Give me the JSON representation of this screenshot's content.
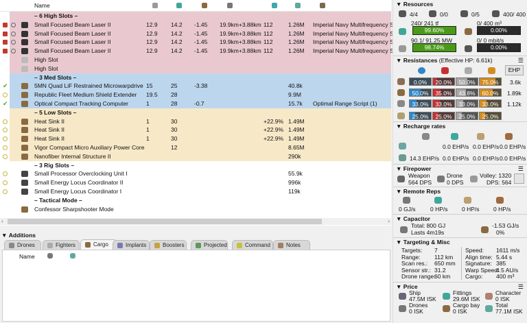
{
  "fitting": {
    "name_header": "Name",
    "column_icons": [
      "cpu-icon",
      "powergrid-icon",
      "capacitor-icon",
      "range-icon",
      "tracking-icon",
      "price-icon",
      "charge-icon"
    ],
    "rows": [
      {
        "type": "high",
        "header": true,
        "name": "– 6 High Slots –"
      },
      {
        "type": "high",
        "state": "overheated",
        "name": "Small Focused Beam Laser II",
        "values": [
          "12.9",
          "14.2",
          "-1.45",
          "19.9km+3.88km",
          "112",
          "1.26M",
          "Imperial Navy Multifrequency S"
        ]
      },
      {
        "type": "high",
        "state": "overheated",
        "name": "Small Focused Beam Laser II",
        "values": [
          "12.9",
          "14.2",
          "-1.45",
          "19.9km+3.88km",
          "112",
          "1.26M",
          "Imperial Navy Multifrequency S"
        ]
      },
      {
        "type": "high",
        "state": "overheated",
        "name": "Small Focused Beam Laser II",
        "values": [
          "12.9",
          "14.2",
          "-1.45",
          "19.9km+3.88km",
          "112",
          "1.26M",
          "Imperial Navy Multifrequency S"
        ]
      },
      {
        "type": "high",
        "state": "overheated",
        "name": "Small Focused Beam Laser II",
        "values": [
          "12.9",
          "14.2",
          "-1.45",
          "19.9km+3.88km",
          "112",
          "1.26M",
          "Imperial Navy Multifrequency S"
        ]
      },
      {
        "type": "high",
        "state": "empty",
        "name": "High Slot",
        "values": []
      },
      {
        "type": "high",
        "state": "empty",
        "name": "High Slot",
        "values": []
      },
      {
        "type": "med",
        "header": true,
        "name": "– 3 Med Slots –"
      },
      {
        "type": "med",
        "state": "active",
        "name": "5MN Quad LiF Restrained Microwarpdrive",
        "values": [
          "15",
          "25",
          "-3.38",
          "",
          "",
          "40.8k",
          ""
        ]
      },
      {
        "type": "med",
        "state": "online",
        "name": "Republic Fleet Medium Shield Extender",
        "values": [
          "19.5",
          "28",
          "",
          "",
          "",
          "9.9M",
          ""
        ]
      },
      {
        "type": "med",
        "state": "active",
        "name": "Optical Compact Tracking Computer",
        "values": [
          "1",
          "28",
          "-0.7",
          "",
          "",
          "15.7k",
          "Optimal Range Script (1)"
        ]
      },
      {
        "type": "low",
        "header": true,
        "name": "– 5 Low Slots –"
      },
      {
        "type": "low",
        "state": "online",
        "name": "Heat Sink II",
        "values": [
          "1",
          "30",
          "",
          "",
          "+22.9%",
          "1.49M",
          ""
        ]
      },
      {
        "type": "low",
        "state": "online",
        "name": "Heat Sink II",
        "values": [
          "1",
          "30",
          "",
          "",
          "+22.9%",
          "1.49M",
          ""
        ]
      },
      {
        "type": "low",
        "state": "online",
        "name": "Heat Sink II",
        "values": [
          "1",
          "30",
          "",
          "",
          "+22.9%",
          "1.49M",
          ""
        ]
      },
      {
        "type": "low",
        "state": "online",
        "name": "Vigor Compact Micro Auxiliary Power Core",
        "values": [
          "",
          "12",
          "",
          "",
          "",
          "8.65M",
          ""
        ]
      },
      {
        "type": "low",
        "state": "online",
        "name": "Nanofiber Internal Structure II",
        "values": [
          "",
          "",
          "",
          "",
          "",
          "290k",
          ""
        ]
      },
      {
        "type": "rig",
        "header": true,
        "name": "– 3 Rig Slots –"
      },
      {
        "type": "rig",
        "state": "online",
        "name": "Small Processor Overclocking Unit I",
        "values": [
          "",
          "",
          "",
          "",
          "",
          "55.9k",
          ""
        ]
      },
      {
        "type": "rig",
        "state": "online",
        "name": "Small Energy Locus Coordinator II",
        "values": [
          "",
          "",
          "",
          "",
          "",
          "996k",
          ""
        ]
      },
      {
        "type": "rig",
        "state": "online",
        "name": "Small Energy Locus Coordinator I",
        "values": [
          "",
          "",
          "",
          "",
          "",
          "119k",
          ""
        ]
      },
      {
        "type": "mode",
        "header": true,
        "name": "– Tactical Mode –"
      },
      {
        "type": "mode",
        "state": "none",
        "name": "Confessor Sharpshooter Mode",
        "values": []
      }
    ]
  },
  "additions": {
    "title": "Additions",
    "tabs": [
      "Drones",
      "Fighters",
      "Cargo",
      "Implants",
      "Boosters",
      "Projected",
      "Command",
      "Notes"
    ],
    "selected_tab": "Cargo",
    "columns": {
      "name": "Name"
    }
  },
  "resources": {
    "title": "Resources",
    "counts": [
      {
        "icon": "turret-hardpoint-icon",
        "value": "4/4"
      },
      {
        "icon": "launcher-hardpoint-icon",
        "value": "0/0"
      },
      {
        "icon": "drone-bay-icon",
        "value": "0/5"
      },
      {
        "icon": "calibration-icon",
        "value": "400/ 400"
      }
    ],
    "cpu": {
      "label": "240/ 241 tf",
      "percent": "99.60%",
      "fill": 99.6
    },
    "power": {
      "label": "90.1/ 91.25 MW",
      "percent": "98.74%",
      "fill": 98.74
    },
    "dronebay": {
      "label": "0/ 400 m³",
      "percent": "0.00%",
      "fill": 0
    },
    "bandwidth": {
      "label": "0/ 0 mbit/s",
      "percent": "0.00%",
      "fill": 0
    }
  },
  "resistances": {
    "title": "Resistances",
    "ehp_note": "(Effective HP: 6.61k)",
    "ehp_button": "EHP",
    "colors": {
      "em": "#2f86c8",
      "thermal": "#c83030",
      "kinetic": "#a8a8a8",
      "explosive": "#d48c20"
    },
    "rows": [
      {
        "layer": "shield",
        "values": [
          "0.0%",
          "20.0%",
          "50.0%",
          "75.0%"
        ],
        "fills": [
          0,
          20,
          50,
          75
        ],
        "ehp": "3.6k"
      },
      {
        "layer": "armor",
        "values": [
          "50.0%",
          "35.0%",
          "43.8%",
          "60.0%"
        ],
        "fills": [
          50,
          35,
          43.8,
          60
        ],
        "ehp": "1.89k"
      },
      {
        "layer": "hull",
        "values": [
          "33.0%",
          "33.0%",
          "33.0%",
          "33.0%"
        ],
        "fills": [
          33,
          33,
          33,
          33
        ],
        "ehp": "1.12k"
      },
      {
        "layer": "damage-pattern",
        "values": [
          "25.0%",
          "25.0%",
          "25.0%",
          "25.0%"
        ],
        "fills": [
          25,
          25,
          25,
          25
        ],
        "ehp": ""
      }
    ]
  },
  "recharge": {
    "title": "Recharge rates",
    "row1": [
      "0.0 EHP/s",
      "0.0 EHP/s",
      "0.0 EHP/s"
    ],
    "row2": [
      "14.3 EHP/s",
      "0.0 EHP/s",
      "0.0 EHP/s",
      "0.0 EHP/s"
    ]
  },
  "firepower": {
    "title": "Firepower",
    "weapon_label": "Weapon",
    "weapon_dps": "564 DPS",
    "drone_label": "Drone",
    "drone_dps": "0 DPS",
    "volley": "Volley: 1320",
    "dps": "DPS: 564"
  },
  "remote_reps": {
    "title": "Remote Reps",
    "values": [
      "0 GJ/s",
      "0 HP/s",
      "0 HP/s",
      "0 HP/s"
    ]
  },
  "capacitor": {
    "title": "Capacitor",
    "total": "Total: 800 GJ",
    "lasts": "Lasts 4m19s",
    "delta": "-1.53 GJ/s",
    "percent": "0%"
  },
  "targeting": {
    "title": "Targeting & Misc",
    "left": [
      [
        "Targets:",
        "7"
      ],
      [
        "Range:",
        "112 km"
      ],
      [
        "Scan res.:",
        "650 mm"
      ],
      [
        "Sensor str.:",
        "31.2"
      ],
      [
        "Drone range:",
        "60 km"
      ]
    ],
    "right": [
      [
        "Speed:",
        "1611 m/s"
      ],
      [
        "Align time:",
        "5.44 s"
      ],
      [
        "Signature:",
        "385"
      ],
      [
        "Warp Speed:",
        "4.5 AU/s"
      ],
      [
        "Cargo:",
        "400 m³"
      ]
    ]
  },
  "price": {
    "title": "Price",
    "items": [
      [
        "Ship",
        "47.5M ISK"
      ],
      [
        "Fittings",
        "29.6M ISK"
      ],
      [
        "Character",
        "0 ISK"
      ],
      [
        "Drones",
        "0 ISK"
      ],
      [
        "Cargo bay",
        "0 ISK"
      ],
      [
        "Total",
        "77.1M ISK"
      ]
    ]
  }
}
